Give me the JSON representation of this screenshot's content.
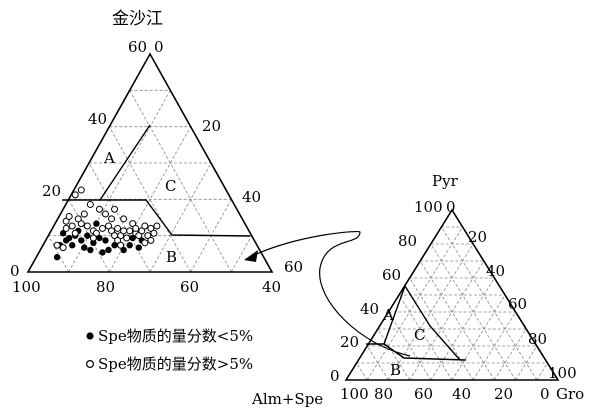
{
  "left_diagram": {
    "title": "金沙江",
    "apex_labels": {
      "top_left": "60",
      "top_right": "0",
      "bottom_left": "0",
      "bottom_left_axis": "100",
      "right_bottom": "40",
      "right_side_end": "60"
    },
    "left_ticks": [
      "20",
      "40"
    ],
    "right_ticks": [
      "20",
      "40"
    ],
    "bottom_ticks": [
      "80",
      "60"
    ],
    "field_labels": [
      "A",
      "B",
      "C"
    ]
  },
  "right_diagram": {
    "title": "Pyr",
    "apex_left": "100",
    "apex_right": "0",
    "left_ticks": [
      "80",
      "60",
      "40",
      "20",
      "0"
    ],
    "right_ticks": [
      "20",
      "40",
      "60",
      "80",
      "100"
    ],
    "bottom_ticks": [
      "100",
      "80",
      "60",
      "40",
      "20",
      "0"
    ],
    "bottom_left_label": "Alm+Spe",
    "bottom_right_label": "Gro",
    "field_labels": [
      "A",
      "B",
      "C"
    ]
  },
  "legend": {
    "filled": "Spe物质的量分数<5%",
    "open": "Spe物质的量分数>5%"
  },
  "points": {
    "filled": [
      [
        10,
        24
      ],
      [
        14,
        20
      ],
      [
        18,
        22
      ],
      [
        22,
        18
      ],
      [
        12,
        18
      ],
      [
        20,
        26
      ],
      [
        26,
        22
      ],
      [
        30,
        16
      ],
      [
        34,
        20
      ],
      [
        16,
        14
      ],
      [
        24,
        12
      ],
      [
        28,
        10
      ],
      [
        38,
        18
      ],
      [
        40,
        10
      ],
      [
        44,
        14
      ],
      [
        50,
        10
      ],
      [
        54,
        14
      ],
      [
        56,
        20
      ],
      [
        60,
        12
      ],
      [
        62,
        18
      ],
      [
        8,
        14
      ],
      [
        36,
        8
      ],
      [
        32,
        32
      ],
      [
        6,
        4
      ]
    ],
    "open": [
      [
        6,
        14
      ],
      [
        10,
        12
      ],
      [
        12,
        28
      ],
      [
        16,
        30
      ],
      [
        18,
        24
      ],
      [
        22,
        32
      ],
      [
        26,
        30
      ],
      [
        30,
        26
      ],
      [
        32,
        24
      ],
      [
        36,
        28
      ],
      [
        40,
        30
      ],
      [
        42,
        26
      ],
      [
        44,
        22
      ],
      [
        46,
        28
      ],
      [
        48,
        22
      ],
      [
        50,
        26
      ],
      [
        52,
        20
      ],
      [
        54,
        26
      ],
      [
        58,
        24
      ],
      [
        60,
        22
      ],
      [
        62,
        26
      ],
      [
        64,
        30
      ],
      [
        66,
        22
      ],
      [
        68,
        28
      ],
      [
        70,
        24
      ],
      [
        72,
        30
      ],
      [
        46,
        18
      ],
      [
        48,
        14
      ],
      [
        42,
        36
      ],
      [
        38,
        40
      ],
      [
        34,
        44
      ],
      [
        44,
        44
      ],
      [
        24,
        40
      ],
      [
        20,
        36
      ],
      [
        28,
        48
      ],
      [
        56,
        32
      ],
      [
        18,
        56
      ],
      [
        22,
        60
      ],
      [
        50,
        36
      ],
      [
        12,
        34
      ],
      [
        14,
        38
      ],
      [
        30,
        20
      ],
      [
        64,
        16
      ],
      [
        58,
        28
      ],
      [
        68,
        18
      ]
    ]
  }
}
